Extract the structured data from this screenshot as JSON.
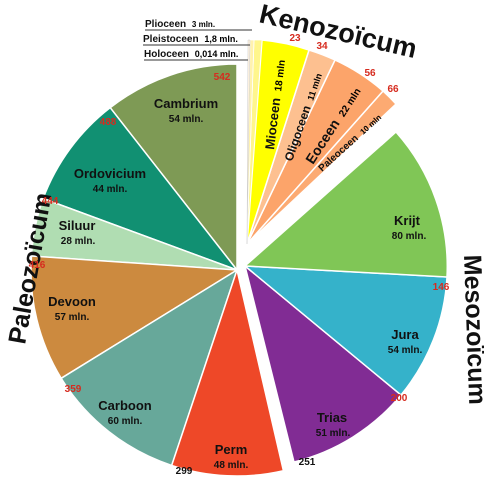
{
  "diagram": {
    "eras": {
      "kenozoicum": "Kenozoïcum",
      "mesozoicum": "Mesozoïcum",
      "paleozoicum": "Paleozoïcum"
    },
    "periods": [
      {
        "key": "cambrium",
        "name": "Cambrium",
        "duration": "54 mln.",
        "start_age": "542",
        "color": "#7e9a55"
      },
      {
        "key": "ordovicium",
        "name": "Ordovicium",
        "duration": "44 mln.",
        "start_age": "488",
        "color": "#119072"
      },
      {
        "key": "siluur",
        "name": "Siluur",
        "duration": "28 mln.",
        "start_age": "444",
        "color": "#b0ddb2"
      },
      {
        "key": "devoon",
        "name": "Devoon",
        "duration": "57 mln.",
        "start_age": "416",
        "color": "#cc8a3f"
      },
      {
        "key": "carboon",
        "name": "Carboon",
        "duration": "60 mln.",
        "start_age": "359",
        "color": "#67a89a"
      },
      {
        "key": "perm",
        "name": "Perm",
        "duration": "48 mln.",
        "start_age": "299",
        "color": "#ee4828"
      },
      {
        "key": "trias",
        "name": "Trias",
        "duration": "51 mln.",
        "start_age": "251",
        "color": "#812c94"
      },
      {
        "key": "jura",
        "name": "Jura",
        "duration": "54 mln.",
        "start_age": "200",
        "color": "#35b2ca"
      },
      {
        "key": "krijt",
        "name": "Krijt",
        "duration": "80 mln.",
        "start_age": "146",
        "color": "#80c656"
      },
      {
        "key": "paleoceen",
        "name": "Paleoceen",
        "duration": "10 mln",
        "start_age": "66",
        "color": "#fcaa72"
      },
      {
        "key": "eoceen",
        "name": "Eoceen",
        "duration": "22 mln",
        "start_age": "56",
        "color": "#fca46a"
      },
      {
        "key": "oligoceen",
        "name": "Oligoceen",
        "duration": "11 mln",
        "start_age": "34",
        "color": "#fdc090"
      },
      {
        "key": "mioceen",
        "name": "Mioceen",
        "duration": "18 mln",
        "start_age": "23",
        "color": "#ffff00"
      },
      {
        "key": "plioceen",
        "name": "Plioceen",
        "duration": "3 mln.",
        "start_age": "",
        "color": "#fff68c"
      },
      {
        "key": "pleistoceen",
        "name": "Pleistoceen",
        "duration": "1,8 mln.",
        "start_age": "",
        "color": "#fff2ae"
      },
      {
        "key": "holoceen",
        "name": "Holoceen",
        "duration": "0,014 mln.",
        "start_age": "",
        "color": "#fef2e0"
      }
    ]
  }
}
